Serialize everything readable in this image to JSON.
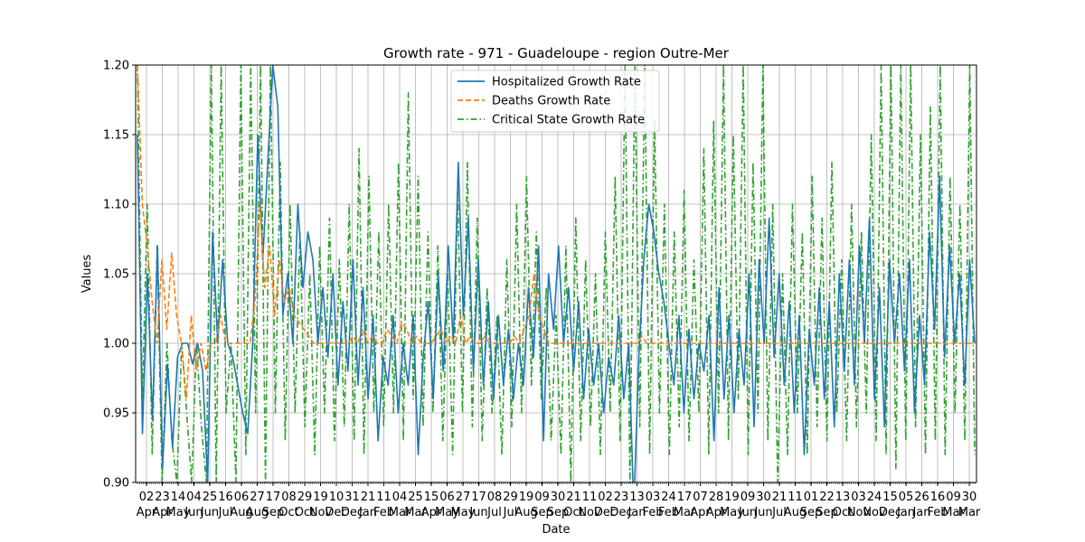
{
  "chart_data": {
    "type": "line",
    "title": "Growth rate - 971 - Guadeloupe - region Outre-Mer",
    "xlabel": "Date",
    "ylabel": "Values",
    "ylim": [
      0.9,
      1.2
    ],
    "yticks": [
      "0.90",
      "0.95",
      "1.00",
      "1.05",
      "1.10",
      "1.15",
      "1.20"
    ],
    "grid": true,
    "legend_position": "top-center",
    "x_tick_labels": [
      {
        "day": "02",
        "month": "Apr"
      },
      {
        "day": "23",
        "month": "Apr"
      },
      {
        "day": "14",
        "month": "May"
      },
      {
        "day": "04",
        "month": "Jun"
      },
      {
        "day": "25",
        "month": "Jun"
      },
      {
        "day": "16",
        "month": "Jul"
      },
      {
        "day": "06",
        "month": "Aug"
      },
      {
        "day": "27",
        "month": "Aug"
      },
      {
        "day": "17",
        "month": "Sep"
      },
      {
        "day": "08",
        "month": "Oct"
      },
      {
        "day": "29",
        "month": "Oct"
      },
      {
        "day": "19",
        "month": "Nov"
      },
      {
        "day": "10",
        "month": "Dec"
      },
      {
        "day": "31",
        "month": "Dec"
      },
      {
        "day": "21",
        "month": "Jan"
      },
      {
        "day": "11",
        "month": "Feb"
      },
      {
        "day": "04",
        "month": "Mar"
      },
      {
        "day": "25",
        "month": "Mar"
      },
      {
        "day": "15",
        "month": "Apr"
      },
      {
        "day": "06",
        "month": "May"
      },
      {
        "day": "27",
        "month": "May"
      },
      {
        "day": "17",
        "month": "Jun"
      },
      {
        "day": "08",
        "month": "Jul"
      },
      {
        "day": "29",
        "month": "Jul"
      },
      {
        "day": "19",
        "month": "Aug"
      },
      {
        "day": "09",
        "month": "Sep"
      },
      {
        "day": "30",
        "month": "Sep"
      },
      {
        "day": "21",
        "month": "Oct"
      },
      {
        "day": "11",
        "month": "Nov"
      },
      {
        "day": "02",
        "month": "Dec"
      },
      {
        "day": "23",
        "month": "Dec"
      },
      {
        "day": "13",
        "month": "Jan"
      },
      {
        "day": "03",
        "month": "Feb"
      },
      {
        "day": "24",
        "month": "Feb"
      },
      {
        "day": "17",
        "month": "Mar"
      },
      {
        "day": "07",
        "month": "Apr"
      },
      {
        "day": "28",
        "month": "Apr"
      },
      {
        "day": "19",
        "month": "May"
      },
      {
        "day": "09",
        "month": "Jun"
      },
      {
        "day": "30",
        "month": "Jun"
      },
      {
        "day": "21",
        "month": "Jul"
      },
      {
        "day": "11",
        "month": "Aug"
      },
      {
        "day": "01",
        "month": "Sep"
      },
      {
        "day": "22",
        "month": "Sep"
      },
      {
        "day": "13",
        "month": "Oct"
      },
      {
        "day": "03",
        "month": "Nov"
      },
      {
        "day": "24",
        "month": "Nov"
      },
      {
        "day": "15",
        "month": "Dec"
      },
      {
        "day": "05",
        "month": "Jan"
      },
      {
        "day": "26",
        "month": "Jan"
      },
      {
        "day": "16",
        "month": "Feb"
      },
      {
        "day": "09",
        "month": "Mar"
      },
      {
        "day": "30",
        "month": "Mar"
      }
    ],
    "series": [
      {
        "name": "Hospitalized Growth Rate",
        "color": "#1f77b4",
        "style": "solid",
        "values": [
          1.15,
          0.935,
          1.05,
          0.945,
          1.07,
          0.91,
          0.985,
          0.925,
          0.99,
          1.0,
          1.0,
          0.985,
          1.0,
          0.98,
          0.9,
          1.08,
          1.0,
          1.06,
          1.0,
          0.99,
          0.97,
          0.95,
          0.935,
          1.0,
          1.15,
          1.06,
          1.13,
          1.2,
          1.17,
          1.02,
          1.05,
          1.0,
          1.1,
          1.04,
          1.08,
          1.06,
          1.0,
          1.04,
          0.99,
          1.05,
          0.97,
          1.03,
          0.98,
          1.06,
          0.97,
          1.04,
          0.96,
          1.02,
          0.93,
          0.99,
          0.97,
          1.02,
          0.95,
          1.0,
          0.97,
          1.02,
          0.92,
          0.99,
          1.03,
          0.96,
          1.05,
          0.98,
          1.07,
          1.0,
          1.13,
          1.02,
          1.09,
          0.98,
          1.06,
          0.97,
          1.03,
          0.96,
          1.02,
          0.97,
          1.01,
          0.96,
          1.0,
          0.97,
          1.04,
          0.99,
          1.07,
          0.93,
          1.05,
          1.01,
          1.07,
          1.0,
          1.04,
          0.98,
          1.03,
          0.96,
          1.01,
          0.97,
          1.0,
          0.95,
          0.99,
          0.97,
          1.02,
          0.96,
          1.0,
          0.88,
          0.99,
          1.06,
          1.1,
          1.08,
          1.05,
          1.03,
          1.0,
          0.97,
          1.02,
          0.95,
          1.01,
          0.96,
          1.0,
          0.98,
          1.02,
          0.93,
          1.04,
          0.96,
          1.02,
          0.95,
          1.01,
          0.97,
          1.05,
          0.94,
          1.06,
          1.0,
          1.09,
          0.99,
          1.05,
          0.97,
          1.03,
          0.95,
          1.02,
          0.92,
          1.01,
          0.97,
          1.04,
          0.96,
          1.03,
          0.94,
          1.05,
          0.98,
          1.06,
          0.97,
          1.07,
          1.0,
          1.09,
          0.96,
          1.04,
          0.94,
          1.06,
          1.0,
          1.05,
          0.98,
          1.06,
          0.95,
          1.02,
          0.97,
          1.08,
          1.01,
          1.12,
          0.99,
          1.07,
          1.0,
          1.05,
          0.97,
          1.06,
          1.0
        ]
      },
      {
        "name": "Deaths Growth Rate",
        "color": "#ff7f0e",
        "style": "dashed",
        "values": [
          1.2,
          1.1,
          1.07,
          1.03,
          1.0,
          1.06,
          1.01,
          1.065,
          1.02,
          1.0,
          0.96,
          1.02,
          0.98,
          1.0,
          0.98,
          1.0,
          1.0,
          1.02,
          1.0,
          1.0,
          1.0,
          1.0,
          1.0,
          1.0,
          1.03,
          1.1,
          1.04,
          1.07,
          1.02,
          1.06,
          1.03,
          1.04,
          1.02,
          1.015,
          1.01,
          1.005,
          1.0,
          1.0,
          1.0,
          1.0,
          1.0,
          1.0,
          1.0,
          1.0,
          1.005,
          1.0,
          1.01,
          1.0,
          1.005,
          1.0,
          1.0,
          1.01,
          1.005,
          1.0,
          1.015,
          1.01,
          1.0,
          1.005,
          1.0,
          1.0,
          1.0,
          1.005,
          1.01,
          1.0,
          1.005,
          1.0,
          1.02,
          1.0,
          1.005,
          1.0,
          1.0,
          1.005,
          1.0,
          1.0,
          1.0,
          1.0,
          1.0,
          1.005,
          1.0,
          1.01,
          1.02,
          1.05,
          1.02,
          1.01,
          1.0,
          1.0,
          1.0,
          1.0,
          1.0,
          1.0,
          1.0,
          1.0,
          1.0,
          1.0,
          1.0,
          1.0,
          1.0,
          1.0,
          1.0,
          1.0,
          1.0,
          1.0,
          1.0,
          1.005,
          1.0,
          1.0,
          1.0,
          1.0,
          1.0,
          1.0,
          1.0,
          1.0,
          1.0,
          1.0,
          1.0,
          1.0,
          1.0,
          1.0,
          1.0,
          1.0,
          1.0,
          1.0,
          1.0,
          1.0,
          1.0,
          1.0,
          1.0,
          1.0,
          1.0,
          1.0,
          1.0,
          1.0,
          1.0,
          1.0,
          1.0,
          1.0,
          1.0,
          1.0,
          1.0,
          1.0,
          1.0,
          1.0,
          1.0,
          1.0,
          1.0,
          1.0,
          1.0,
          1.0,
          1.0,
          1.0,
          1.0,
          1.0,
          1.0,
          1.0,
          1.0,
          1.0,
          1.0,
          1.0,
          1.0,
          1.0,
          1.0,
          1.0,
          1.0,
          1.0,
          1.0,
          1.0,
          1.0,
          1.0,
          1.0,
          1.0,
          1.0,
          1.0
        ]
      },
      {
        "name": "Critical State Growth Rate",
        "color": "#2ca02c",
        "style": "dashdot",
        "values": [
          1.2,
          0.96,
          1.1,
          0.92,
          1.07,
          0.9,
          1.0,
          0.93,
          0.9,
          1.0,
          0.95,
          0.9,
          1.0,
          0.94,
          0.9,
          1.2,
          0.9,
          1.2,
          0.95,
          1.0,
          0.9,
          1.2,
          0.92,
          1.2,
          0.95,
          1.2,
          0.9,
          1.2,
          0.95,
          1.13,
          0.93,
          1.1,
          0.95,
          1.08,
          0.94,
          1.05,
          0.92,
          1.07,
          0.95,
          1.09,
          0.93,
          1.06,
          0.94,
          1.1,
          0.93,
          1.14,
          0.92,
          1.12,
          0.95,
          1.08,
          0.94,
          1.1,
          0.95,
          1.13,
          0.93,
          1.18,
          0.96,
          1.12,
          0.94,
          1.08,
          0.95,
          1.07,
          0.93,
          1.05,
          0.92,
          1.11,
          0.95,
          1.13,
          0.94,
          1.09,
          0.93,
          1.04,
          0.95,
          1.02,
          0.92,
          1.06,
          0.94,
          1.1,
          0.95,
          1.12,
          0.97,
          1.08,
          0.96,
          1.04,
          0.93,
          1.02,
          0.92,
          1.07,
          0.9,
          1.09,
          0.93,
          1.06,
          0.94,
          1.05,
          0.92,
          1.08,
          0.95,
          1.12,
          0.93,
          1.2,
          0.9,
          1.2,
          0.94,
          1.2,
          0.92,
          1.16,
          0.95,
          1.1,
          0.92,
          1.08,
          0.94,
          1.11,
          0.93,
          1.06,
          0.95,
          1.14,
          0.92,
          1.16,
          0.95,
          1.2,
          0.93,
          1.15,
          0.96,
          1.2,
          0.92,
          1.13,
          0.95,
          1.2,
          0.93,
          1.1,
          0.9,
          1.05,
          0.92,
          1.1,
          0.95,
          1.08,
          0.92,
          1.12,
          0.94,
          1.09,
          0.93,
          1.13,
          0.95,
          1.06,
          0.93,
          1.1,
          0.94,
          1.08,
          0.95,
          1.15,
          0.93,
          1.2,
          0.92,
          1.2,
          0.91,
          1.2,
          0.93,
          1.2,
          0.94,
          1.15,
          0.92,
          1.17,
          0.93,
          1.2,
          0.92,
          1.12,
          0.95,
          1.1,
          0.93,
          1.2,
          0.92
        ]
      }
    ]
  }
}
